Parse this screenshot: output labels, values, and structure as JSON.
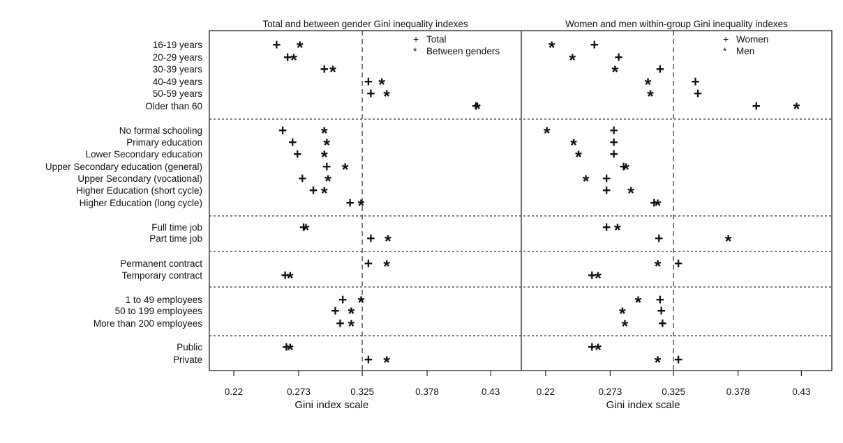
{
  "chart_data": {
    "type": "scatter",
    "x_scale_label": "Gini index scale",
    "xlim": [
      0.2,
      0.455
    ],
    "xticks": [
      "0.22",
      "0.273",
      "0.325",
      "0.378",
      "0.43"
    ],
    "reference_line": 0.325,
    "groups": [
      [
        "16-19 years",
        "20-29 years",
        "30-39 years",
        "40-49 years",
        "50-59 years",
        "Older than 60"
      ],
      [
        "No formal schooling",
        "Primary education",
        "Lower Secondary education",
        "Upper Secondary education (general)",
        "Upper Secondary (vocational)",
        "Higher Education (short cycle)",
        "Higher Education (long cycle)"
      ],
      [
        "Full time job",
        "Part time job"
      ],
      [
        "Permanent contract",
        "Temporary contract"
      ],
      [
        "1 to 49 employees",
        "50 to 199 employees",
        "More than 200 employees"
      ],
      [
        "Public",
        "Private"
      ]
    ],
    "panels": [
      {
        "title": "Total and between gender Gini inequality indexes",
        "legend": [
          {
            "symbol": "+",
            "label": "Total"
          },
          {
            "symbol": "*",
            "label": "Between genders"
          }
        ],
        "series": [
          {
            "name": "Total",
            "symbol": "+",
            "values": [
              0.255,
              0.264,
              0.294,
              0.33,
              0.332,
              0.418,
              0.26,
              0.268,
              0.272,
              0.296,
              0.276,
              0.285,
              0.315,
              0.277,
              0.332,
              0.33,
              0.262,
              0.309,
              0.303,
              0.307,
              0.263,
              0.33
            ]
          },
          {
            "name": "Between genders",
            "symbol": "*",
            "values": [
              0.274,
              0.269,
              0.301,
              0.341,
              0.345,
              0.419,
              0.294,
              0.296,
              0.294,
              0.311,
              0.297,
              0.294,
              0.324,
              0.279,
              0.346,
              0.345,
              0.266,
              0.324,
              0.316,
              0.316,
              0.266,
              0.345
            ]
          }
        ]
      },
      {
        "title": "Women and men within-group Gini inequality indexes",
        "legend": [
          {
            "symbol": "+",
            "label": "Women"
          },
          {
            "symbol": "*",
            "label": "Men"
          }
        ],
        "series": [
          {
            "name": "Women",
            "symbol": "+",
            "values": [
              0.26,
              0.28,
              0.314,
              0.343,
              0.345,
              0.393,
              0.276,
              0.276,
              0.276,
              0.284,
              0.27,
              0.27,
              0.309,
              0.27,
              0.313,
              0.329,
              0.258,
              0.314,
              0.315,
              0.316,
              0.258,
              0.329
            ]
          },
          {
            "name": "Men",
            "symbol": "*",
            "values": [
              0.225,
              0.242,
              0.277,
              0.304,
              0.306,
              0.426,
              0.221,
              0.243,
              0.247,
              0.286,
              0.253,
              0.29,
              0.312,
              0.279,
              0.37,
              0.312,
              0.263,
              0.296,
              0.283,
              0.285,
              0.263,
              0.312
            ]
          }
        ]
      }
    ]
  }
}
